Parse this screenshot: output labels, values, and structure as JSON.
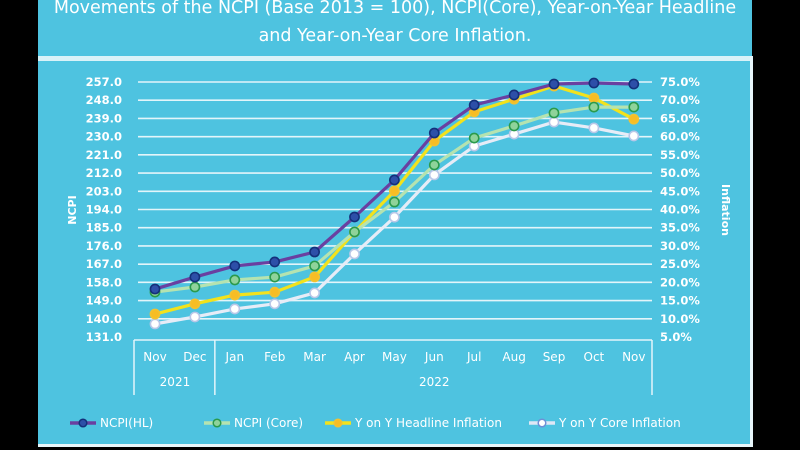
{
  "chart_data": {
    "type": "line",
    "title": "Movements of the NCPI (Base 2013 = 100), NCPI(Core), Year-on-Year Headline and Year-on-Year Core Inflation.",
    "title_lines": [
      "Movements of the NCPI (Base 2013 = 100), NCPI(Core), Year-on-Year Headline",
      "and Year-on-Year Core Inflation."
    ],
    "categories": [
      "Nov",
      "Dec",
      "Jan",
      "Feb",
      "Mar",
      "Apr",
      "May",
      "Jun",
      "Jul",
      "Aug",
      "Sep",
      "Oct",
      "Nov"
    ],
    "year_groups": [
      {
        "label": "2021",
        "start": 0,
        "end": 1
      },
      {
        "label": "2022",
        "start": 2,
        "end": 12
      }
    ],
    "ylabel": "NCPI",
    "y2label": "Inflation",
    "ylim": [
      131,
      257
    ],
    "y2lim": [
      5,
      75
    ],
    "yticks": [
      "257.0",
      "248.0",
      "239.0",
      "230.0",
      "221.0",
      "212.0",
      "203.0",
      "194.0",
      "185.0",
      "176.0",
      "167.0",
      "158.0",
      "149.0",
      "140.0",
      "131.0"
    ],
    "y2ticks": [
      "75.0%",
      "70.0%",
      "65.0%",
      "60.0%",
      "55.0%",
      "50.0%",
      "45.0%",
      "40.0%",
      "35.0%",
      "30.0%",
      "25.0%",
      "20.0%",
      "15.0%",
      "10.0%",
      "5.0%"
    ],
    "grid": true,
    "legend_position": "bottom",
    "series": [
      {
        "name": "NCPI(HL)",
        "axis": "left",
        "color": "#6a3fa0",
        "marker": "#1f3f8f",
        "values": [
          154.7,
          160.6,
          166.1,
          168.1,
          173.0,
          190.3,
          208.6,
          231.8,
          245.6,
          250.6,
          256.0,
          256.5,
          256.0
        ]
      },
      {
        "name": "NCPI (Core)",
        "axis": "left",
        "color": "#b5e3b0",
        "marker": "#2f9e4f",
        "values": [
          153.2,
          155.7,
          159.2,
          160.6,
          166.1,
          182.9,
          197.7,
          216.0,
          229.3,
          235.3,
          241.7,
          244.6,
          244.6
        ]
      },
      {
        "name": "Y on Y Headline Inflation",
        "axis": "right",
        "color": "#f2e21c",
        "marker": "#f6b21a",
        "values": [
          11.3,
          14.1,
          16.5,
          17.3,
          21.5,
          33.8,
          45.1,
          58.8,
          66.8,
          70.3,
          73.9,
          70.6,
          64.8
        ]
      },
      {
        "name": "Y on Y Core Inflation",
        "axis": "right",
        "color": "#e6ecf7",
        "marker": "#e6ecf7",
        "values": [
          8.6,
          10.5,
          12.7,
          14.1,
          17.1,
          27.8,
          37.9,
          49.5,
          57.4,
          60.7,
          64.0,
          62.4,
          60.2
        ]
      }
    ]
  }
}
